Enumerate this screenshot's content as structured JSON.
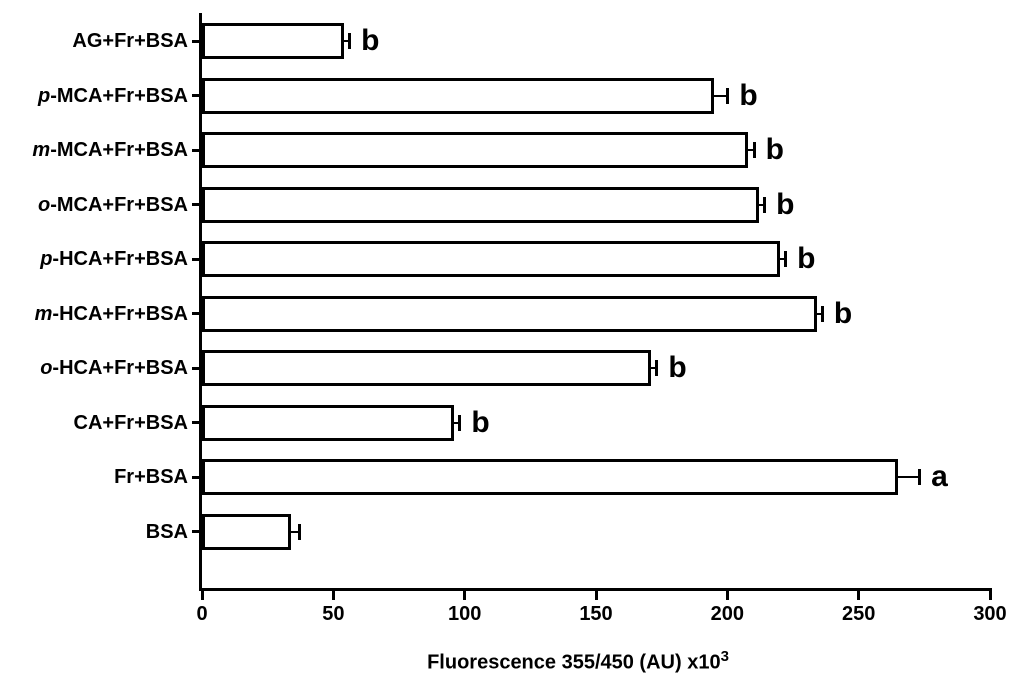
{
  "chart_data": {
    "type": "bar",
    "orientation": "horizontal",
    "xlabel_base": "Fluorescence 355/450 (AU) x10",
    "xlabel_exponent": "3",
    "xlim": [
      0,
      300
    ],
    "xticks": [
      "0",
      "50",
      "100",
      "150",
      "200",
      "250",
      "300"
    ],
    "grid": false,
    "legend": false,
    "background": "#ffffff",
    "bar_fill": "#ffffff",
    "bar_border": "#000000",
    "axis_color": "#000000",
    "text_color": "#000000",
    "rows": [
      {
        "label_italic": "",
        "label": "AG+Fr+BSA",
        "value": 54,
        "error": 2,
        "letter": "b"
      },
      {
        "label_italic": "p",
        "label": "-MCA+Fr+BSA",
        "value": 195,
        "error": 5,
        "letter": "b"
      },
      {
        "label_italic": "m",
        "label": "-MCA+Fr+BSA",
        "value": 208,
        "error": 2,
        "letter": "b"
      },
      {
        "label_italic": "o",
        "label": "-MCA+Fr+BSA",
        "value": 212,
        "error": 2,
        "letter": "b"
      },
      {
        "label_italic": "p",
        "label": "-HCA+Fr+BSA",
        "value": 220,
        "error": 2,
        "letter": "b"
      },
      {
        "label_italic": "m",
        "label": "-HCA+Fr+BSA",
        "value": 234,
        "error": 2,
        "letter": "b"
      },
      {
        "label_italic": "o",
        "label": "-HCA+Fr+BSA",
        "value": 171,
        "error": 2,
        "letter": "b"
      },
      {
        "label_italic": "",
        "label": "CA+Fr+BSA",
        "value": 96,
        "error": 2,
        "letter": "b"
      },
      {
        "label_italic": "",
        "label": "Fr+BSA",
        "value": 265,
        "error": 8,
        "letter": "a"
      },
      {
        "label_italic": "",
        "label": "BSA",
        "value": 34,
        "error": 3,
        "letter": ""
      }
    ]
  }
}
